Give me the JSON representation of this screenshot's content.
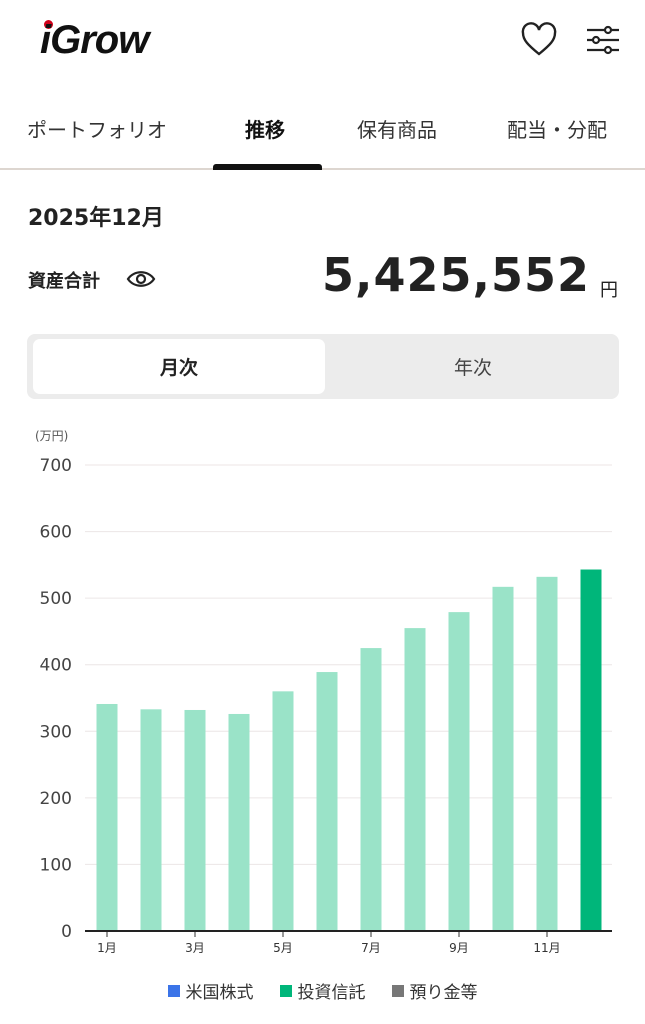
{
  "header": {
    "logo": "iGrow",
    "icons": [
      "heart-icon",
      "filter-sliders-icon"
    ]
  },
  "tabs": [
    {
      "label": "ポートフォリオ"
    },
    {
      "label": "推移",
      "active": true
    },
    {
      "label": "保有商品"
    },
    {
      "label": "配当・分配"
    }
  ],
  "summary": {
    "date": "2025年12月",
    "total_label": "資産合計",
    "total_value": "5,425,552",
    "currency": "円"
  },
  "period_toggle": {
    "options": [
      "月次",
      "年次"
    ],
    "selected": "月次"
  },
  "chart_data": {
    "type": "bar",
    "unit_label": "(万円)",
    "categories": [
      "1月",
      "2月",
      "3月",
      "4月",
      "5月",
      "6月",
      "7月",
      "8月",
      "9月",
      "10月",
      "11月",
      "12月"
    ],
    "x_tick_labels": [
      "1月",
      "3月",
      "5月",
      "7月",
      "9月",
      "11月"
    ],
    "values": [
      341,
      333,
      332,
      326,
      360,
      389,
      425,
      455,
      479,
      517,
      532,
      543
    ],
    "ylim": [
      0,
      700
    ],
    "y_ticks": [
      0,
      100,
      200,
      300,
      400,
      500,
      600,
      700
    ],
    "grid": true,
    "colors": {
      "bar": "#9ae3c8",
      "highlight": "#00b67a"
    },
    "highlighted": "12月",
    "legend": [
      {
        "name": "米国株式",
        "color": "#3b74e8"
      },
      {
        "name": "投資信託",
        "color": "#00b67a"
      },
      {
        "name": "預り金等",
        "color": "#777777"
      }
    ],
    "legend_position": "bottom"
  }
}
